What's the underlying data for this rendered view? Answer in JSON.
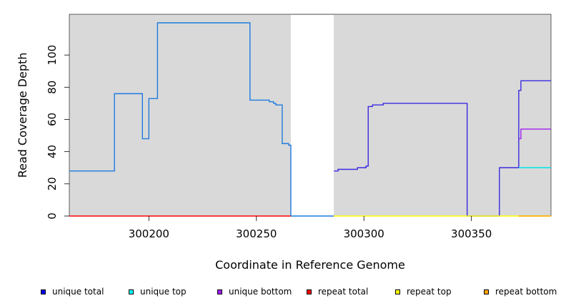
{
  "chart_data": {
    "type": "line",
    "title": "",
    "xlabel": "Coordinate in Reference Genome",
    "ylabel": "Read Coverage Depth",
    "xlim": [
      300163,
      300387
    ],
    "ylim": [
      0,
      120
    ],
    "xticks": [
      300200,
      300250,
      300300,
      300350
    ],
    "yticks": [
      0,
      20,
      40,
      60,
      80,
      100
    ],
    "background": "#d9d9d9",
    "unmasked_region": [
      300266,
      300286
    ],
    "grid": false,
    "legend_position": "bottom",
    "series": [
      {
        "name": "unique total",
        "color": "#1e7ae0",
        "points": [
          [
            300163,
            28
          ],
          [
            300184,
            28
          ],
          [
            300184,
            76
          ],
          [
            300197,
            76
          ],
          [
            300197,
            48
          ],
          [
            300200,
            48
          ],
          [
            300200,
            73
          ],
          [
            300204,
            73
          ],
          [
            300204,
            120
          ],
          [
            300247,
            120
          ],
          [
            300247,
            72
          ],
          [
            300256,
            72
          ],
          [
            300256,
            71
          ],
          [
            300258,
            71
          ],
          [
            300258,
            70
          ],
          [
            300259,
            70
          ],
          [
            300259,
            69
          ],
          [
            300262,
            69
          ],
          [
            300262,
            45
          ],
          [
            300265,
            45
          ],
          [
            300265,
            44
          ],
          [
            300266,
            44
          ],
          [
            300266,
            0
          ],
          [
            300286,
            0
          ]
        ]
      },
      {
        "name": "unique total",
        "color": "#3a2ae0",
        "points": [
          [
            300286,
            28
          ],
          [
            300288,
            28
          ],
          [
            300288,
            29
          ],
          [
            300297,
            29
          ],
          [
            300297,
            30
          ],
          [
            300301,
            30
          ],
          [
            300301,
            31
          ],
          [
            300302,
            31
          ],
          [
            300302,
            68
          ],
          [
            300304,
            68
          ],
          [
            300304,
            69
          ],
          [
            300309,
            69
          ],
          [
            300309,
            70
          ],
          [
            300348,
            70
          ],
          [
            300348,
            0
          ],
          [
            300363,
            0
          ],
          [
            300363,
            30
          ],
          [
            300372,
            30
          ],
          [
            300372,
            78
          ],
          [
            300373,
            78
          ],
          [
            300373,
            84
          ],
          [
            300387,
            84
          ]
        ]
      },
      {
        "name": "unique top",
        "color": "#00e5e5",
        "points": [
          [
            300372,
            30
          ],
          [
            300387,
            30
          ]
        ]
      },
      {
        "name": "unique bottom",
        "color": "#a020f0",
        "points": [
          [
            300372,
            48
          ],
          [
            300373,
            48
          ],
          [
            300373,
            54
          ],
          [
            300387,
            54
          ]
        ]
      },
      {
        "name": "repeat total",
        "color": "#ff0000",
        "points": [
          [
            300163,
            0
          ],
          [
            300266,
            0
          ]
        ]
      },
      {
        "name": "repeat top",
        "color": "#ffff00",
        "points": [
          [
            300286,
            0
          ],
          [
            300387,
            0
          ]
        ]
      },
      {
        "name": "repeat bottom",
        "color": "#ffa500",
        "points": [
          [
            300372,
            0
          ],
          [
            300387,
            0
          ]
        ]
      }
    ]
  },
  "legend": [
    {
      "label": "unique total",
      "color": "#0000ff"
    },
    {
      "label": "unique top",
      "color": "#00ffff"
    },
    {
      "label": "unique bottom",
      "color": "#a020f0"
    },
    {
      "label": "repeat total",
      "color": "#ff0000"
    },
    {
      "label": "repeat top",
      "color": "#ffff00"
    },
    {
      "label": "repeat bottom",
      "color": "#ffa500"
    }
  ]
}
